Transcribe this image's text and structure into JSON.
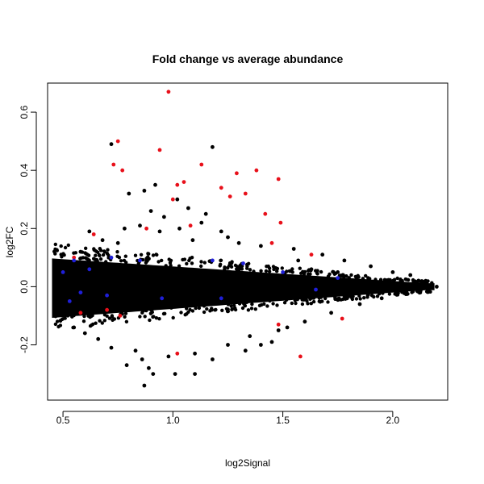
{
  "chart_data": {
    "type": "scatter",
    "title": "Fold change vs average abundance",
    "xlabel": "log2Signal",
    "ylabel": "log2FC",
    "xlim": [
      0.43,
      2.25
    ],
    "ylim": [
      -0.39,
      0.7
    ],
    "xticks": [
      0.5,
      1.0,
      1.5,
      2.0
    ],
    "xtick_labels": [
      "0.5",
      "1.0",
      "1.5",
      "2.0"
    ],
    "yticks": [
      -0.2,
      0.0,
      0.2,
      0.4,
      0.6
    ],
    "ytick_labels": [
      "-0.2",
      "0.0",
      "0.2",
      "0.4",
      "0.6"
    ],
    "grid": false,
    "legend": "none",
    "series": [
      {
        "color": "#000000",
        "points": [
          [
            0.72,
            0.49
          ],
          [
            1.18,
            0.48
          ],
          [
            0.92,
            0.35
          ],
          [
            0.87,
            0.33
          ],
          [
            0.8,
            0.32
          ],
          [
            1.02,
            0.3
          ],
          [
            1.07,
            0.27
          ],
          [
            0.9,
            0.26
          ],
          [
            1.15,
            0.25
          ],
          [
            0.96,
            0.24
          ],
          [
            1.13,
            0.22
          ],
          [
            0.85,
            0.21
          ],
          [
            1.03,
            0.2
          ],
          [
            0.78,
            0.2
          ],
          [
            1.22,
            0.19
          ],
          [
            0.94,
            0.19
          ],
          [
            0.62,
            0.19
          ],
          [
            1.25,
            0.17
          ],
          [
            0.68,
            0.16
          ],
          [
            1.09,
            0.16
          ],
          [
            1.3,
            0.15
          ],
          [
            0.75,
            0.15
          ],
          [
            1.4,
            0.14
          ],
          [
            1.55,
            0.13
          ],
          [
            0.58,
            0.12
          ],
          [
            1.68,
            0.11
          ],
          [
            1.78,
            0.09
          ],
          [
            1.9,
            0.07
          ],
          [
            2.0,
            0.05
          ],
          [
            2.08,
            0.04
          ],
          [
            2.15,
            0.02
          ],
          [
            2.2,
            0.0
          ],
          [
            2.12,
            -0.01
          ],
          [
            2.02,
            -0.02
          ],
          [
            1.95,
            -0.04
          ],
          [
            1.85,
            -0.06
          ],
          [
            1.72,
            -0.09
          ],
          [
            1.6,
            -0.12
          ],
          [
            1.48,
            -0.15
          ],
          [
            1.35,
            -0.17
          ],
          [
            1.25,
            -0.2
          ],
          [
            1.33,
            -0.22
          ],
          [
            1.1,
            -0.23
          ],
          [
            0.98,
            -0.24
          ],
          [
            0.86,
            -0.25
          ],
          [
            0.79,
            -0.27
          ],
          [
            0.89,
            -0.28
          ],
          [
            0.91,
            -0.3
          ],
          [
            1.1,
            -0.3
          ],
          [
            1.01,
            -0.3
          ],
          [
            0.87,
            -0.34
          ],
          [
            0.72,
            -0.21
          ],
          [
            0.66,
            -0.18
          ],
          [
            0.55,
            -0.14
          ],
          [
            0.6,
            -0.16
          ],
          [
            1.45,
            -0.19
          ],
          [
            1.52,
            -0.14
          ],
          [
            1.18,
            -0.25
          ],
          [
            1.4,
            -0.2
          ],
          [
            0.83,
            -0.22
          ],
          [
            1.63,
            0.06
          ],
          [
            1.75,
            0.05
          ],
          [
            1.57,
            0.09
          ],
          [
            0.5,
            0.04
          ],
          [
            0.47,
            -0.02
          ]
        ]
      },
      {
        "color": "#e8101a",
        "points": [
          [
            0.98,
            0.67
          ],
          [
            0.75,
            0.5
          ],
          [
            0.94,
            0.47
          ],
          [
            0.73,
            0.42
          ],
          [
            0.77,
            0.4
          ],
          [
            1.13,
            0.42
          ],
          [
            1.29,
            0.39
          ],
          [
            1.38,
            0.4
          ],
          [
            1.05,
            0.36
          ],
          [
            1.02,
            0.35
          ],
          [
            1.33,
            0.32
          ],
          [
            1.26,
            0.31
          ],
          [
            1.22,
            0.34
          ],
          [
            1.0,
            0.3
          ],
          [
            1.48,
            0.37
          ],
          [
            1.42,
            0.25
          ],
          [
            1.08,
            0.21
          ],
          [
            0.88,
            0.2
          ],
          [
            0.64,
            0.18
          ],
          [
            1.49,
            0.22
          ],
          [
            1.45,
            0.15
          ],
          [
            0.55,
            0.1
          ],
          [
            1.63,
            0.11
          ],
          [
            1.02,
            -0.23
          ],
          [
            1.58,
            -0.24
          ],
          [
            1.77,
            -0.11
          ],
          [
            1.48,
            -0.13
          ],
          [
            0.58,
            -0.09
          ],
          [
            0.7,
            -0.08
          ],
          [
            0.76,
            -0.1
          ]
        ]
      },
      {
        "color": "#1f1fd8",
        "points": [
          [
            0.55,
            0.09
          ],
          [
            0.72,
            0.1
          ],
          [
            0.85,
            0.09
          ],
          [
            1.18,
            0.09
          ],
          [
            1.32,
            0.08
          ],
          [
            0.5,
            0.05
          ],
          [
            0.62,
            0.06
          ],
          [
            1.5,
            0.05
          ],
          [
            1.75,
            0.03
          ],
          [
            0.58,
            -0.02
          ],
          [
            0.95,
            -0.04
          ],
          [
            1.22,
            -0.04
          ],
          [
            0.53,
            -0.05
          ],
          [
            1.65,
            -0.01
          ],
          [
            0.7,
            -0.03
          ]
        ]
      }
    ]
  }
}
